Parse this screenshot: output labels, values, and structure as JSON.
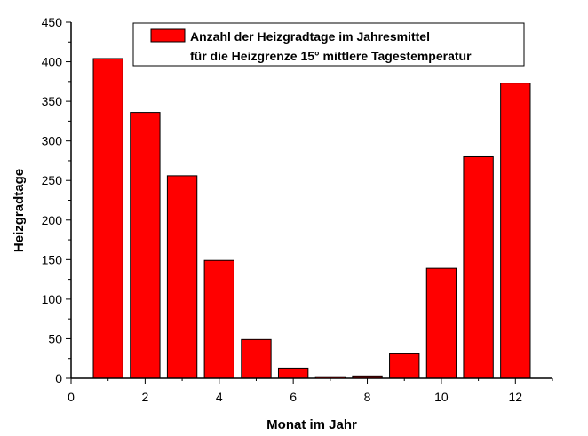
{
  "chart_data": {
    "type": "bar",
    "x": [
      1,
      2,
      3,
      4,
      5,
      6,
      7,
      8,
      9,
      10,
      11,
      12
    ],
    "values": [
      404,
      336,
      256,
      149,
      49,
      13,
      2,
      3,
      31,
      139,
      280,
      373
    ],
    "series": [
      {
        "name": "Anzahl der Heizgradtage im Jahresmittel",
        "name_line2": "für die Heizgrenze 15° mittlere Tagestemperatur",
        "values": [
          404,
          336,
          256,
          149,
          49,
          13,
          2,
          3,
          31,
          139,
          280,
          373
        ]
      }
    ],
    "xlabel": "Monat im Jahr",
    "ylabel": "Heizgradtage",
    "xlim": [
      0,
      13
    ],
    "ylim": [
      0,
      450
    ],
    "xticks": [
      "0",
      "2",
      "4",
      "6",
      "8",
      "10",
      "12"
    ],
    "yticks": [
      "0",
      "50",
      "100",
      "150",
      "200",
      "250",
      "300",
      "350",
      "400",
      "450"
    ],
    "grid": false,
    "legend_position": "top-right",
    "colors": {
      "bar": "#ff0000",
      "edge": "#000000",
      "axis": "#000000"
    }
  }
}
